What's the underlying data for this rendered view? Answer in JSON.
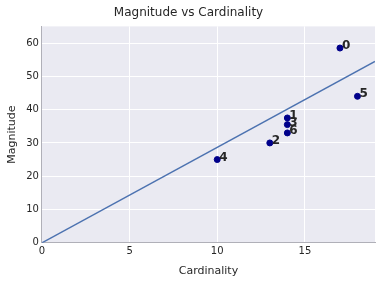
{
  "chart_data": {
    "type": "scatter",
    "title": "Magnitude vs Cardinality",
    "x_label": "Cardinality",
    "y_label": "Magnitude",
    "series": [
      {
        "type": "scatter",
        "color": "#00008b",
        "marker": "circle",
        "x": [
          17,
          14,
          13,
          14,
          10,
          18,
          14
        ],
        "values": [
          58.5,
          37.5,
          30,
          35.5,
          25,
          44,
          33
        ],
        "point_labels": [
          "0",
          "1",
          "2",
          "3",
          "4",
          "5",
          "6"
        ]
      },
      {
        "type": "line",
        "color": "#4c72b0",
        "line_style": "solid",
        "x": [
          0,
          19
        ],
        "values": [
          0,
          54.5
        ]
      }
    ],
    "xlim": [
      0,
      19
    ],
    "xticks": [
      0,
      5,
      10,
      15
    ],
    "ylim": [
      0,
      65
    ],
    "yticks": [
      0,
      10,
      20,
      30,
      40,
      50,
      60
    ],
    "grid": true
  }
}
